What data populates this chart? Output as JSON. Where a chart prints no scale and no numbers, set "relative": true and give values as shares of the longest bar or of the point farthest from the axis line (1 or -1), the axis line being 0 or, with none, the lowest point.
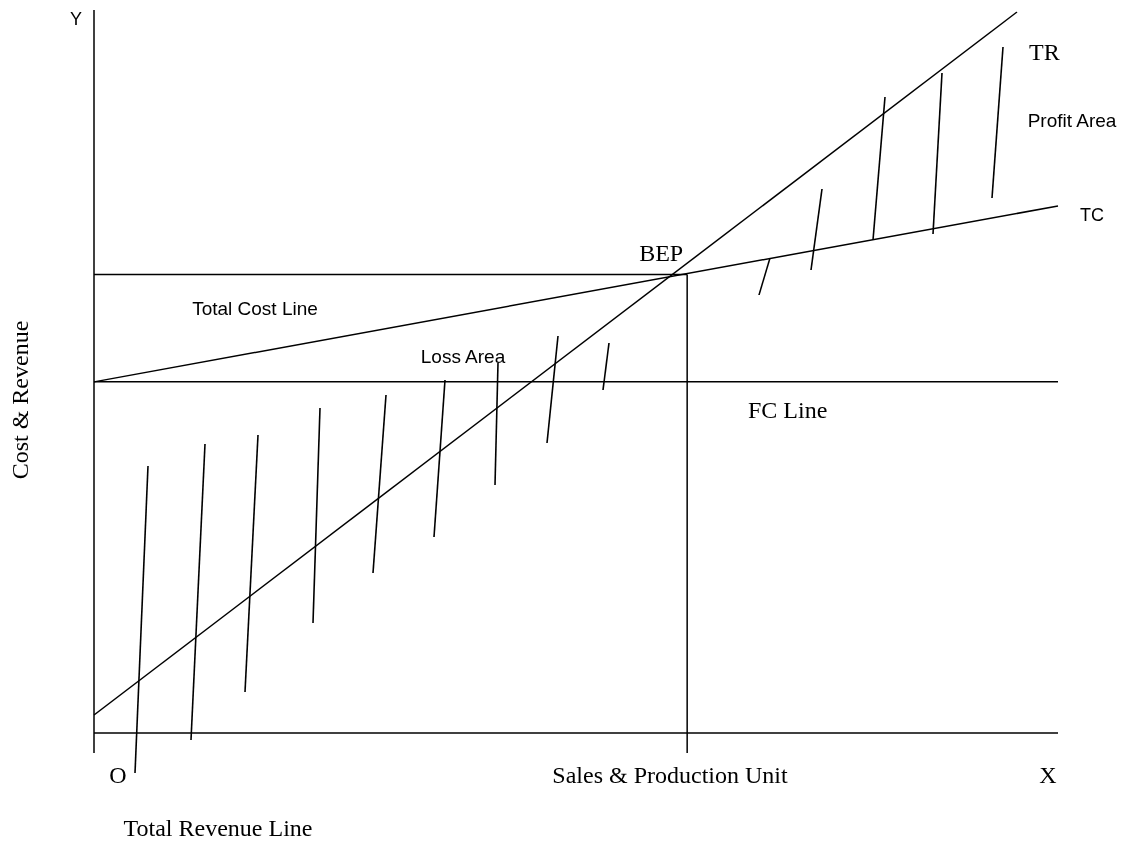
{
  "chart_data": {
    "type": "line",
    "relative": true,
    "ylabel": "Cost & Revenue",
    "xlabel": "Sales & Production Unit",
    "tick_labels": false,
    "marker": "none",
    "line_style": "solid",
    "categories": [
      null,
      null,
      null,
      null,
      null,
      null,
      null,
      null,
      null,
      null,
      null,
      null,
      null,
      null,
      null,
      null,
      null,
      null,
      null,
      null,
      null,
      null,
      null,
      null,
      null,
      null,
      null,
      null,
      null,
      null,
      null,
      null,
      null,
      null,
      null,
      null,
      null,
      null,
      null,
      null,
      null,
      null,
      null,
      null,
      null,
      null,
      null,
      null
    ],
    "series": [
      {
        "name": "TR",
        "color": "#000000",
        "values": [
          0.025,
          null,
          null,
          null,
          null,
          null,
          null,
          null,
          null,
          null,
          null,
          null,
          null,
          null,
          null,
          null,
          null,
          null,
          null,
          null,
          null,
          null,
          null,
          null,
          null,
          null,
          null,
          null,
          null,
          null,
          null,
          null,
          null,
          null,
          null,
          null,
          null,
          null,
          null,
          null,
          null,
          null,
          null,
          null,
          null,
          1,
          null,
          null
        ]
      },
      {
        "name": "TC",
        "color": "#000000",
        "values": [
          0.487,
          null,
          null,
          null,
          null,
          null,
          null,
          null,
          null,
          null,
          null,
          null,
          null,
          null,
          null,
          null,
          null,
          null,
          null,
          null,
          null,
          null,
          null,
          null,
          null,
          null,
          null,
          null,
          null,
          null,
          null,
          null,
          null,
          null,
          null,
          null,
          null,
          null,
          null,
          null,
          null,
          null,
          null,
          null,
          null,
          null,
          null,
          0.731
        ]
      },
      {
        "name": "FC Line",
        "color": "#000000",
        "values": [
          0.487,
          null,
          null,
          null,
          null,
          null,
          null,
          null,
          null,
          null,
          null,
          null,
          null,
          null,
          null,
          null,
          null,
          null,
          null,
          null,
          null,
          null,
          null,
          null,
          null,
          null,
          null,
          null,
          null,
          null,
          null,
          null,
          null,
          null,
          null,
          null,
          null,
          null,
          null,
          null,
          null,
          null,
          null,
          null,
          null,
          null,
          null,
          0.487
        ]
      }
    ],
    "ref_lines": [
      {
        "axis": "y",
        "value": 0.636,
        "color": "#000000"
      }
    ],
    "annotations": [
      "Y",
      "O",
      "X",
      "Total Revenue Line",
      "Total Cost Line",
      "Loss Area",
      "Profit Area",
      {
        "text": "BEP",
        "y": 0.636
      }
    ]
  }
}
